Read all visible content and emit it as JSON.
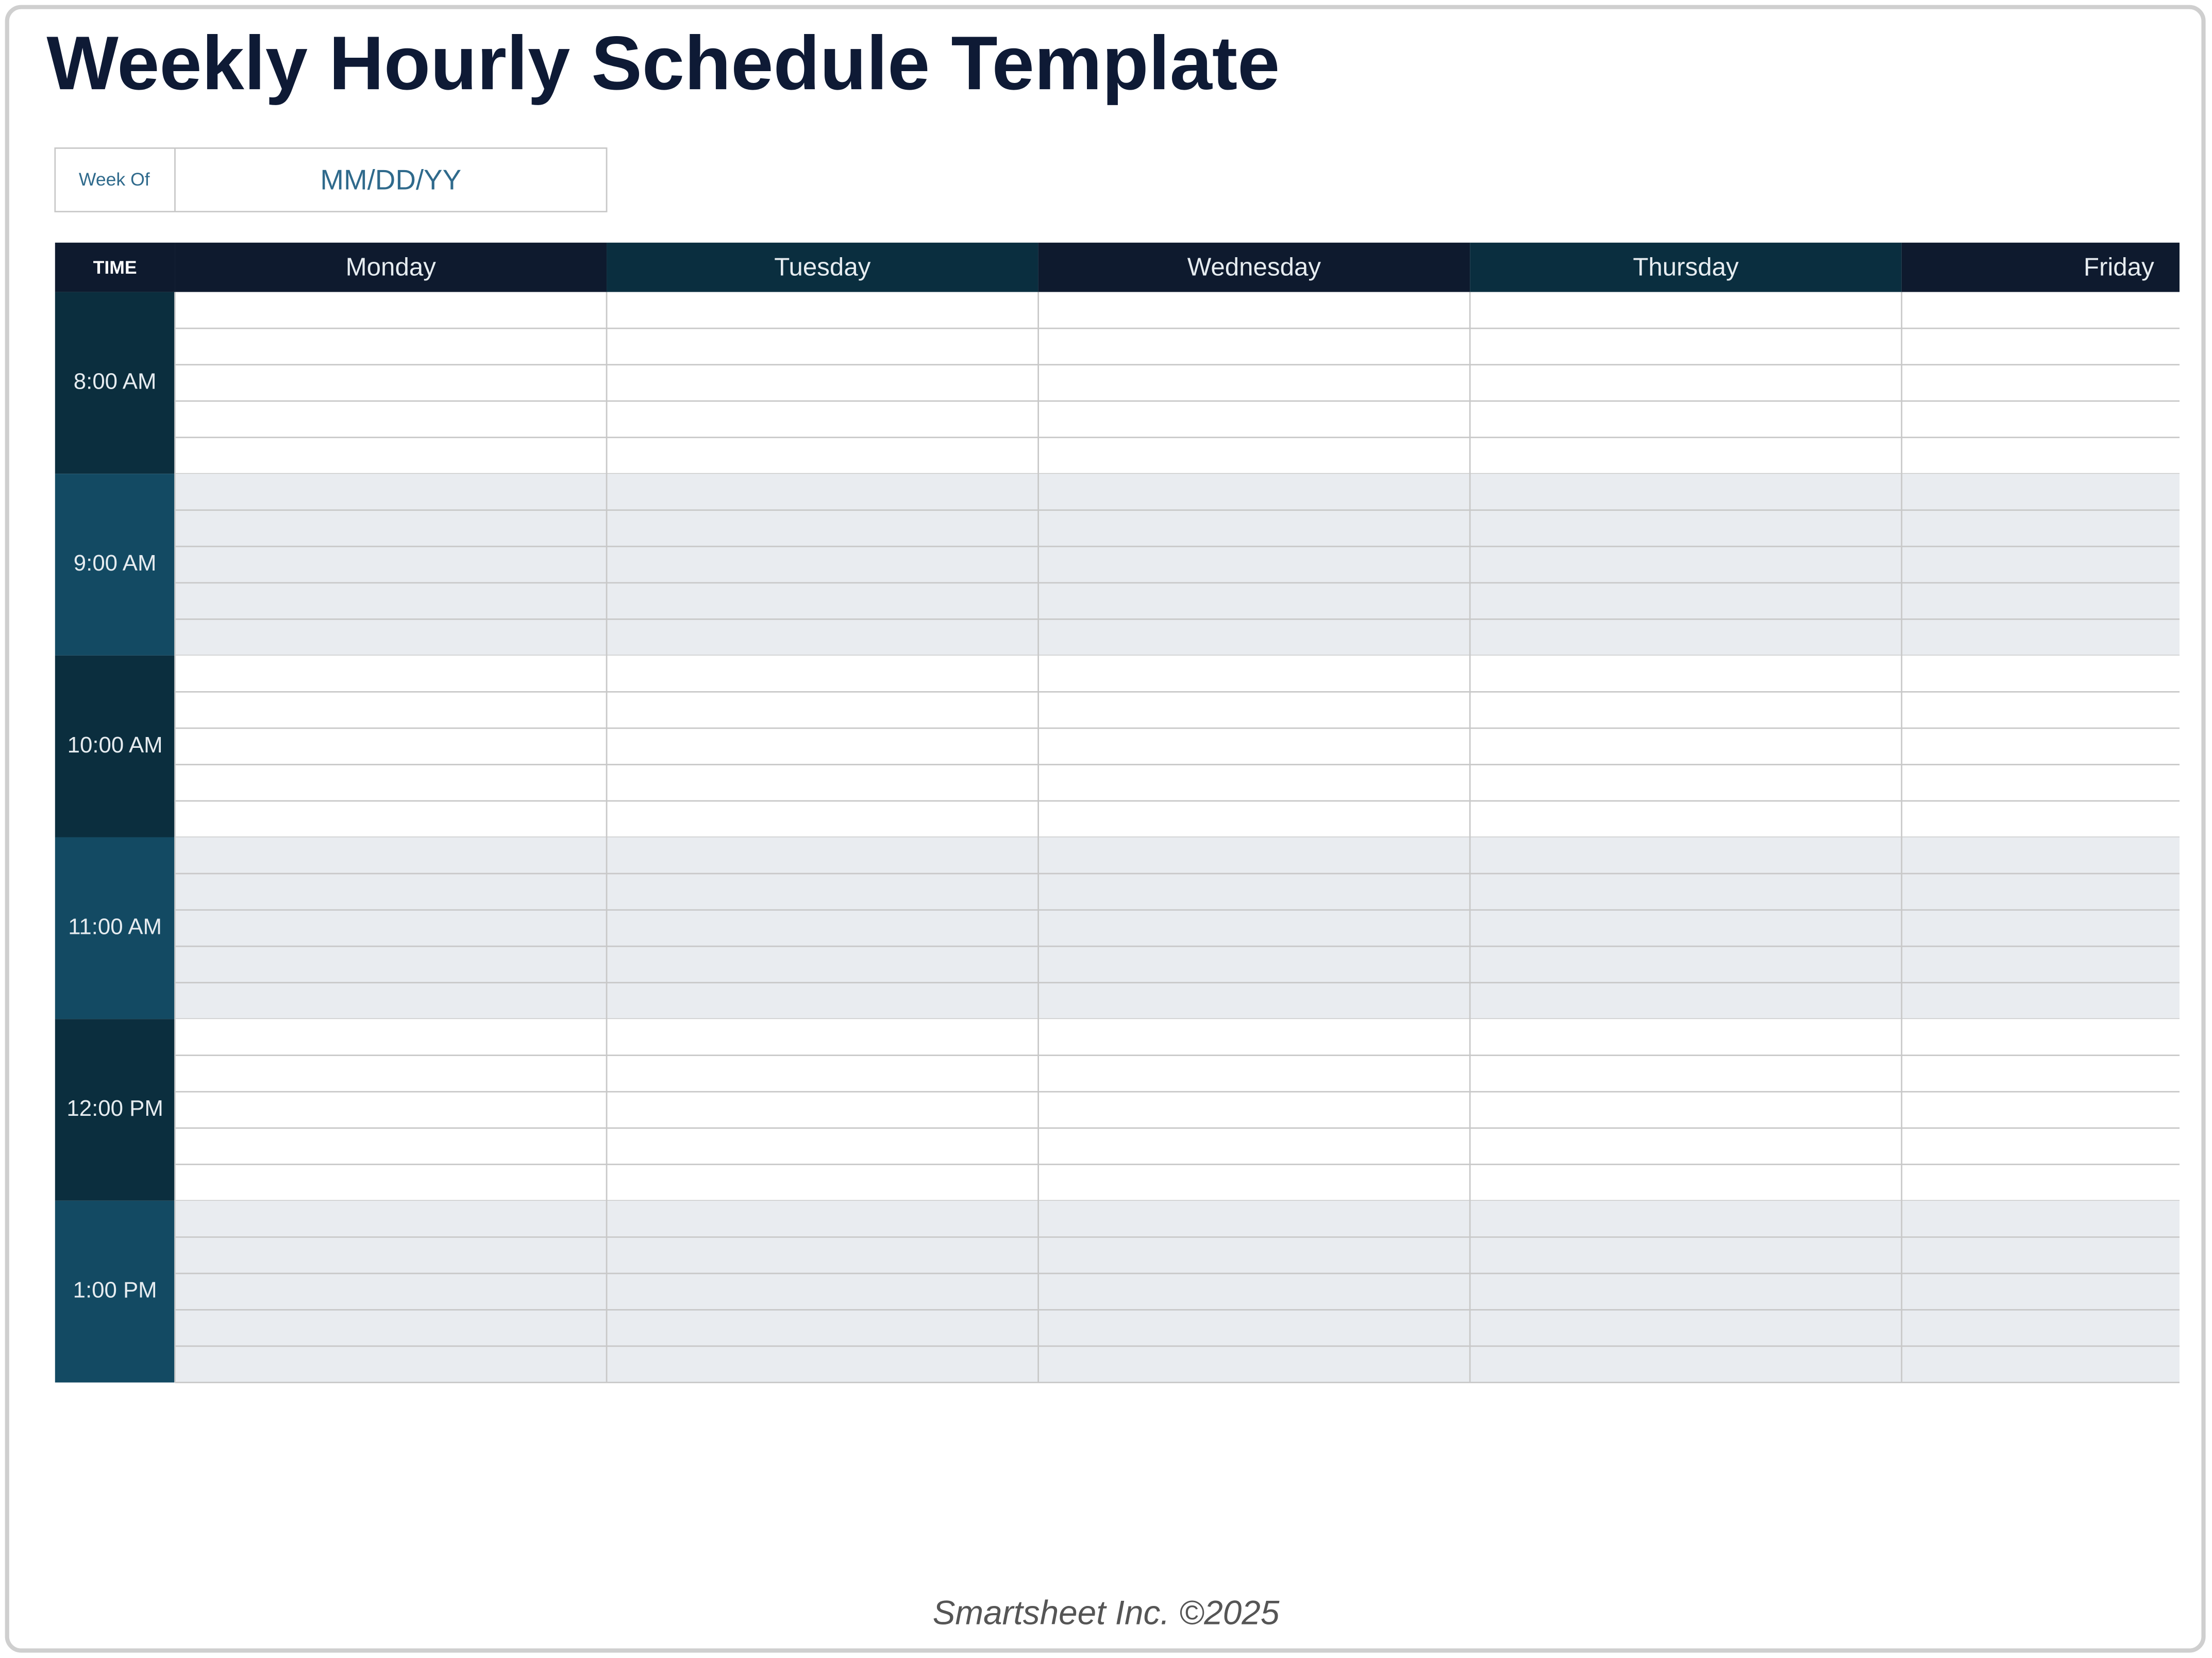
{
  "title": "Weekly Hourly Schedule Template",
  "week_of": {
    "label": "Week Of",
    "value": "MM/DD/YY"
  },
  "table": {
    "time_header": "TIME",
    "days": [
      "Monday",
      "Tuesday",
      "Wednesday",
      "Thursday",
      "Friday"
    ],
    "times": [
      "8:00 AM",
      "9:00 AM",
      "10:00 AM",
      "11:00 AM",
      "12:00 PM",
      "1:00 PM"
    ]
  },
  "footer": "Smartsheet Inc. ©2025"
}
